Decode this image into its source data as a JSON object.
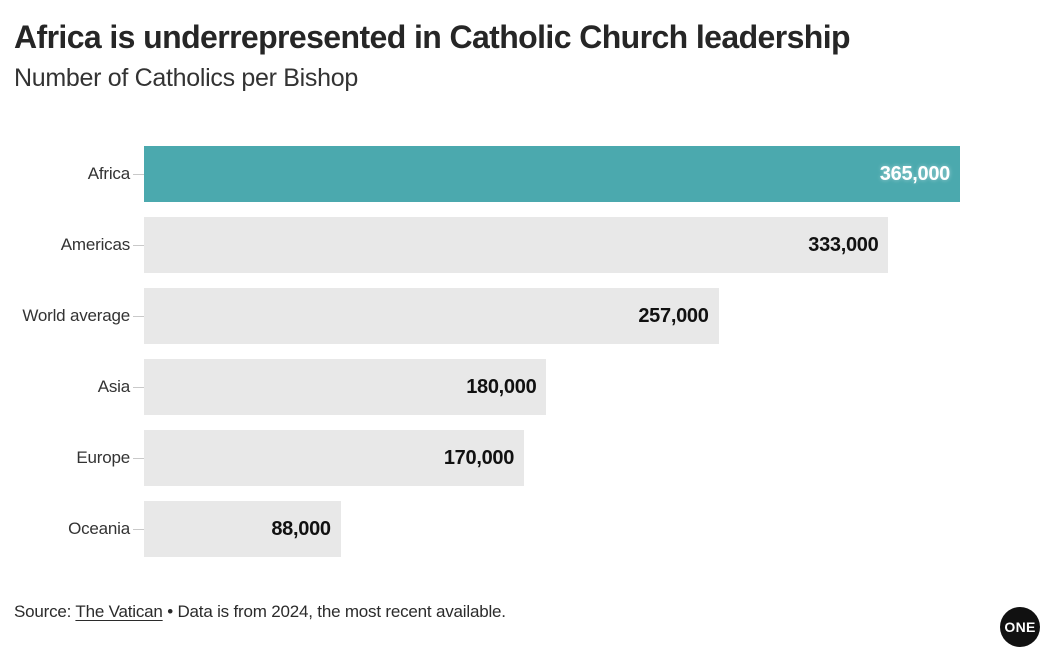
{
  "header": {
    "title": "Africa is underrepresented in Catholic Church leadership",
    "subtitle": "Number of Catholics per Bishop"
  },
  "chart_data": {
    "type": "bar",
    "orientation": "horizontal",
    "title": "Africa is underrepresented in Catholic Church leadership",
    "subtitle": "Number of Catholics per Bishop",
    "categories": [
      "Africa",
      "Americas",
      "World average",
      "Asia",
      "Europe",
      "Oceania"
    ],
    "values": [
      365000,
      333000,
      257000,
      180000,
      170000,
      88000
    ],
    "labels": [
      "365,000",
      "333,000",
      "257,000",
      "180,000",
      "170,000",
      "88,000"
    ],
    "xlabel": "",
    "ylabel": "",
    "xlim": [
      0,
      365000
    ],
    "grid": false,
    "legend": false,
    "highlight_category": "Africa",
    "highlight_color": "#4ba9ae",
    "default_bar_color": "#e8e8e8",
    "value_labels_inside": true
  },
  "footer": {
    "source_prefix": "Source: ",
    "source_link": "The Vatican",
    "source_suffix": " • Data is from 2024, the most recent available.",
    "logo_text": "ONE"
  },
  "colors": {
    "highlight": "#4ba9ae",
    "bar": "#e8e8e8",
    "title_text": "#262626",
    "body_text": "#333333",
    "tick": "#c9c9c9",
    "logo_bg": "#111111"
  }
}
